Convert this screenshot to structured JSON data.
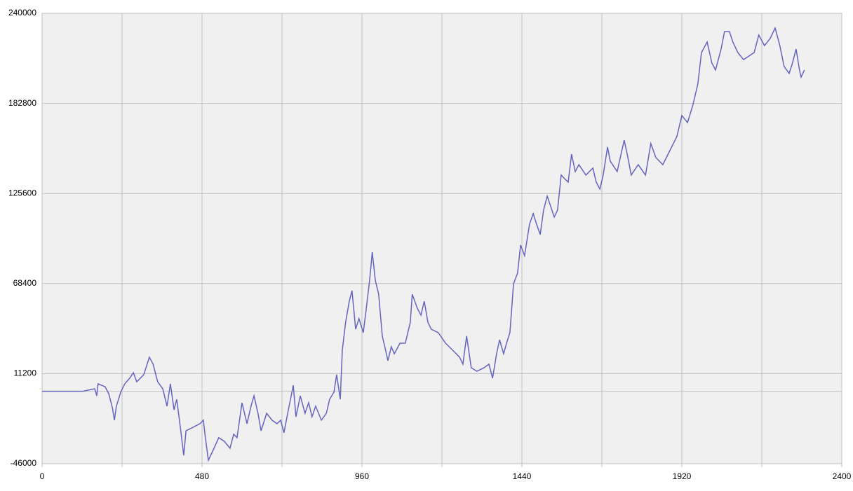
{
  "chart_data": {
    "type": "line",
    "xlim": [
      0,
      2400
    ],
    "xticks": [
      0,
      480,
      960,
      1440,
      1920,
      2400
    ],
    "xminor": [
      240,
      720,
      1200,
      1680,
      2160
    ],
    "ylim": [
      -46000,
      240000
    ],
    "yticks": [
      -46000,
      11200,
      68400,
      125600,
      182800,
      240000
    ],
    "hline": 0,
    "grid": true,
    "series": [
      {
        "color": "#6464c0",
        "x": [
          0,
          122,
          158,
          164,
          168,
          189,
          200,
          211,
          217,
          223,
          236,
          248,
          263,
          274,
          284,
          305,
          322,
          333,
          347,
          362,
          375,
          385,
          396,
          404,
          415,
          425,
          432,
          453,
          474,
          484,
          490,
          499,
          516,
          530,
          547,
          564,
          575,
          585,
          600,
          615,
          627,
          636,
          648,
          657,
          674,
          690,
          705,
          716,
          726,
          737,
          754,
          762,
          775,
          789,
          800,
          810,
          821,
          838,
          853,
          863,
          876,
          884,
          895,
          901,
          911,
          922,
          930,
          941,
          951,
          964,
          973,
          983,
          991,
          1000,
          1010,
          1021,
          1031,
          1038,
          1048,
          1057,
          1074,
          1090,
          1105,
          1111,
          1126,
          1137,
          1147,
          1158,
          1168,
          1189,
          1211,
          1232,
          1253,
          1263,
          1274,
          1288,
          1305,
          1326,
          1341,
          1352,
          1364,
          1373,
          1385,
          1394,
          1404,
          1415,
          1427,
          1436,
          1448,
          1463,
          1474,
          1484,
          1495,
          1505,
          1516,
          1537,
          1547,
          1558,
          1568,
          1579,
          1589,
          1600,
          1611,
          1632,
          1653,
          1663,
          1674,
          1684,
          1697,
          1705,
          1726,
          1747,
          1758,
          1768,
          1789,
          1811,
          1827,
          1842,
          1863,
          1884,
          1905,
          1920,
          1937,
          1953,
          1968,
          1979,
          1996,
          2010,
          2021,
          2038,
          2048,
          2063,
          2073,
          2088,
          2105,
          2122,
          2137,
          2151,
          2168,
          2185,
          2200,
          2214,
          2227,
          2242,
          2252,
          2263,
          2273,
          2278,
          2288
        ],
        "values": [
          0,
          0,
          1600,
          -2900,
          4700,
          2900,
          -1500,
          -10400,
          -18400,
          -9500,
          -600,
          4700,
          8300,
          11800,
          6000,
          10500,
          21600,
          17200,
          6000,
          1600,
          -9500,
          4700,
          -11800,
          -5100,
          -22900,
          -40700,
          -25100,
          -22900,
          -20600,
          -18400,
          -29500,
          -43800,
          -36200,
          -29500,
          -31800,
          -36200,
          -27300,
          -29500,
          -7300,
          -20600,
          -9500,
          -2900,
          -14000,
          -25100,
          -14000,
          -18400,
          -20600,
          -18400,
          -26400,
          -14000,
          3800,
          -16200,
          -2900,
          -14000,
          -7300,
          -16200,
          -9500,
          -18400,
          -14000,
          -5100,
          -600,
          10500,
          -5100,
          26100,
          43800,
          57200,
          63900,
          39400,
          46100,
          37200,
          52700,
          70500,
          88300,
          70500,
          61600,
          35000,
          26100,
          19400,
          28300,
          23800,
          30500,
          30500,
          43800,
          61600,
          52700,
          48300,
          57200,
          43800,
          39400,
          37200,
          30500,
          26100,
          21600,
          17200,
          35000,
          14900,
          12700,
          14900,
          17200,
          8300,
          23800,
          32700,
          23800,
          30500,
          37200,
          68300,
          75000,
          92800,
          86100,
          106100,
          112800,
          106100,
          99500,
          115000,
          123900,
          110600,
          115000,
          137300,
          135000,
          132800,
          150600,
          139500,
          143900,
          137300,
          141700,
          132800,
          128400,
          137300,
          155100,
          146200,
          139500,
          159500,
          148400,
          137300,
          143900,
          137300,
          157300,
          148400,
          143900,
          152800,
          161700,
          175100,
          170600,
          181700,
          195100,
          215100,
          221800,
          208400,
          204000,
          217300,
          228400,
          228400,
          221800,
          215100,
          210600,
          212900,
          215100,
          226200,
          219500,
          224000,
          230700,
          219500,
          206200,
          201800,
          208400,
          217300,
          204000,
          199500,
          204000
        ]
      }
    ]
  }
}
